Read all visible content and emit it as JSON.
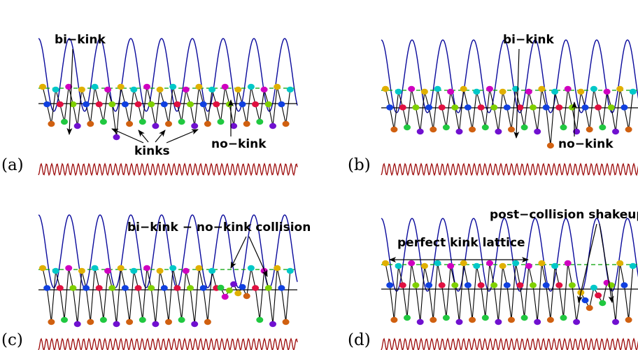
{
  "figure": {
    "panels": [
      {
        "id": "a",
        "label": "(a)",
        "annotations": [
          "bi−kink",
          "kinks",
          "no−kink"
        ]
      },
      {
        "id": "b",
        "label": "(b)",
        "annotations": [
          "bi−kink",
          "no−kink"
        ]
      },
      {
        "id": "c",
        "label": "(c)",
        "annotations": [
          "bi−kink − no−kink collision"
        ]
      },
      {
        "id": "d",
        "label": "(d)",
        "annotations": [
          "perfect kink lattice",
          "post−collision shakeup"
        ]
      }
    ],
    "colors": {
      "top_wave": "#0a0a9c",
      "bottom_wave": "#9c0a0a",
      "dashed_line": "#00a000",
      "chain_line": "#000000",
      "beads": [
        "#e0b000",
        "#7fd000",
        "#20c840",
        "#00c8c8",
        "#1040e0",
        "#7010d0",
        "#d000c0",
        "#e01040",
        "#d06010"
      ]
    }
  }
}
